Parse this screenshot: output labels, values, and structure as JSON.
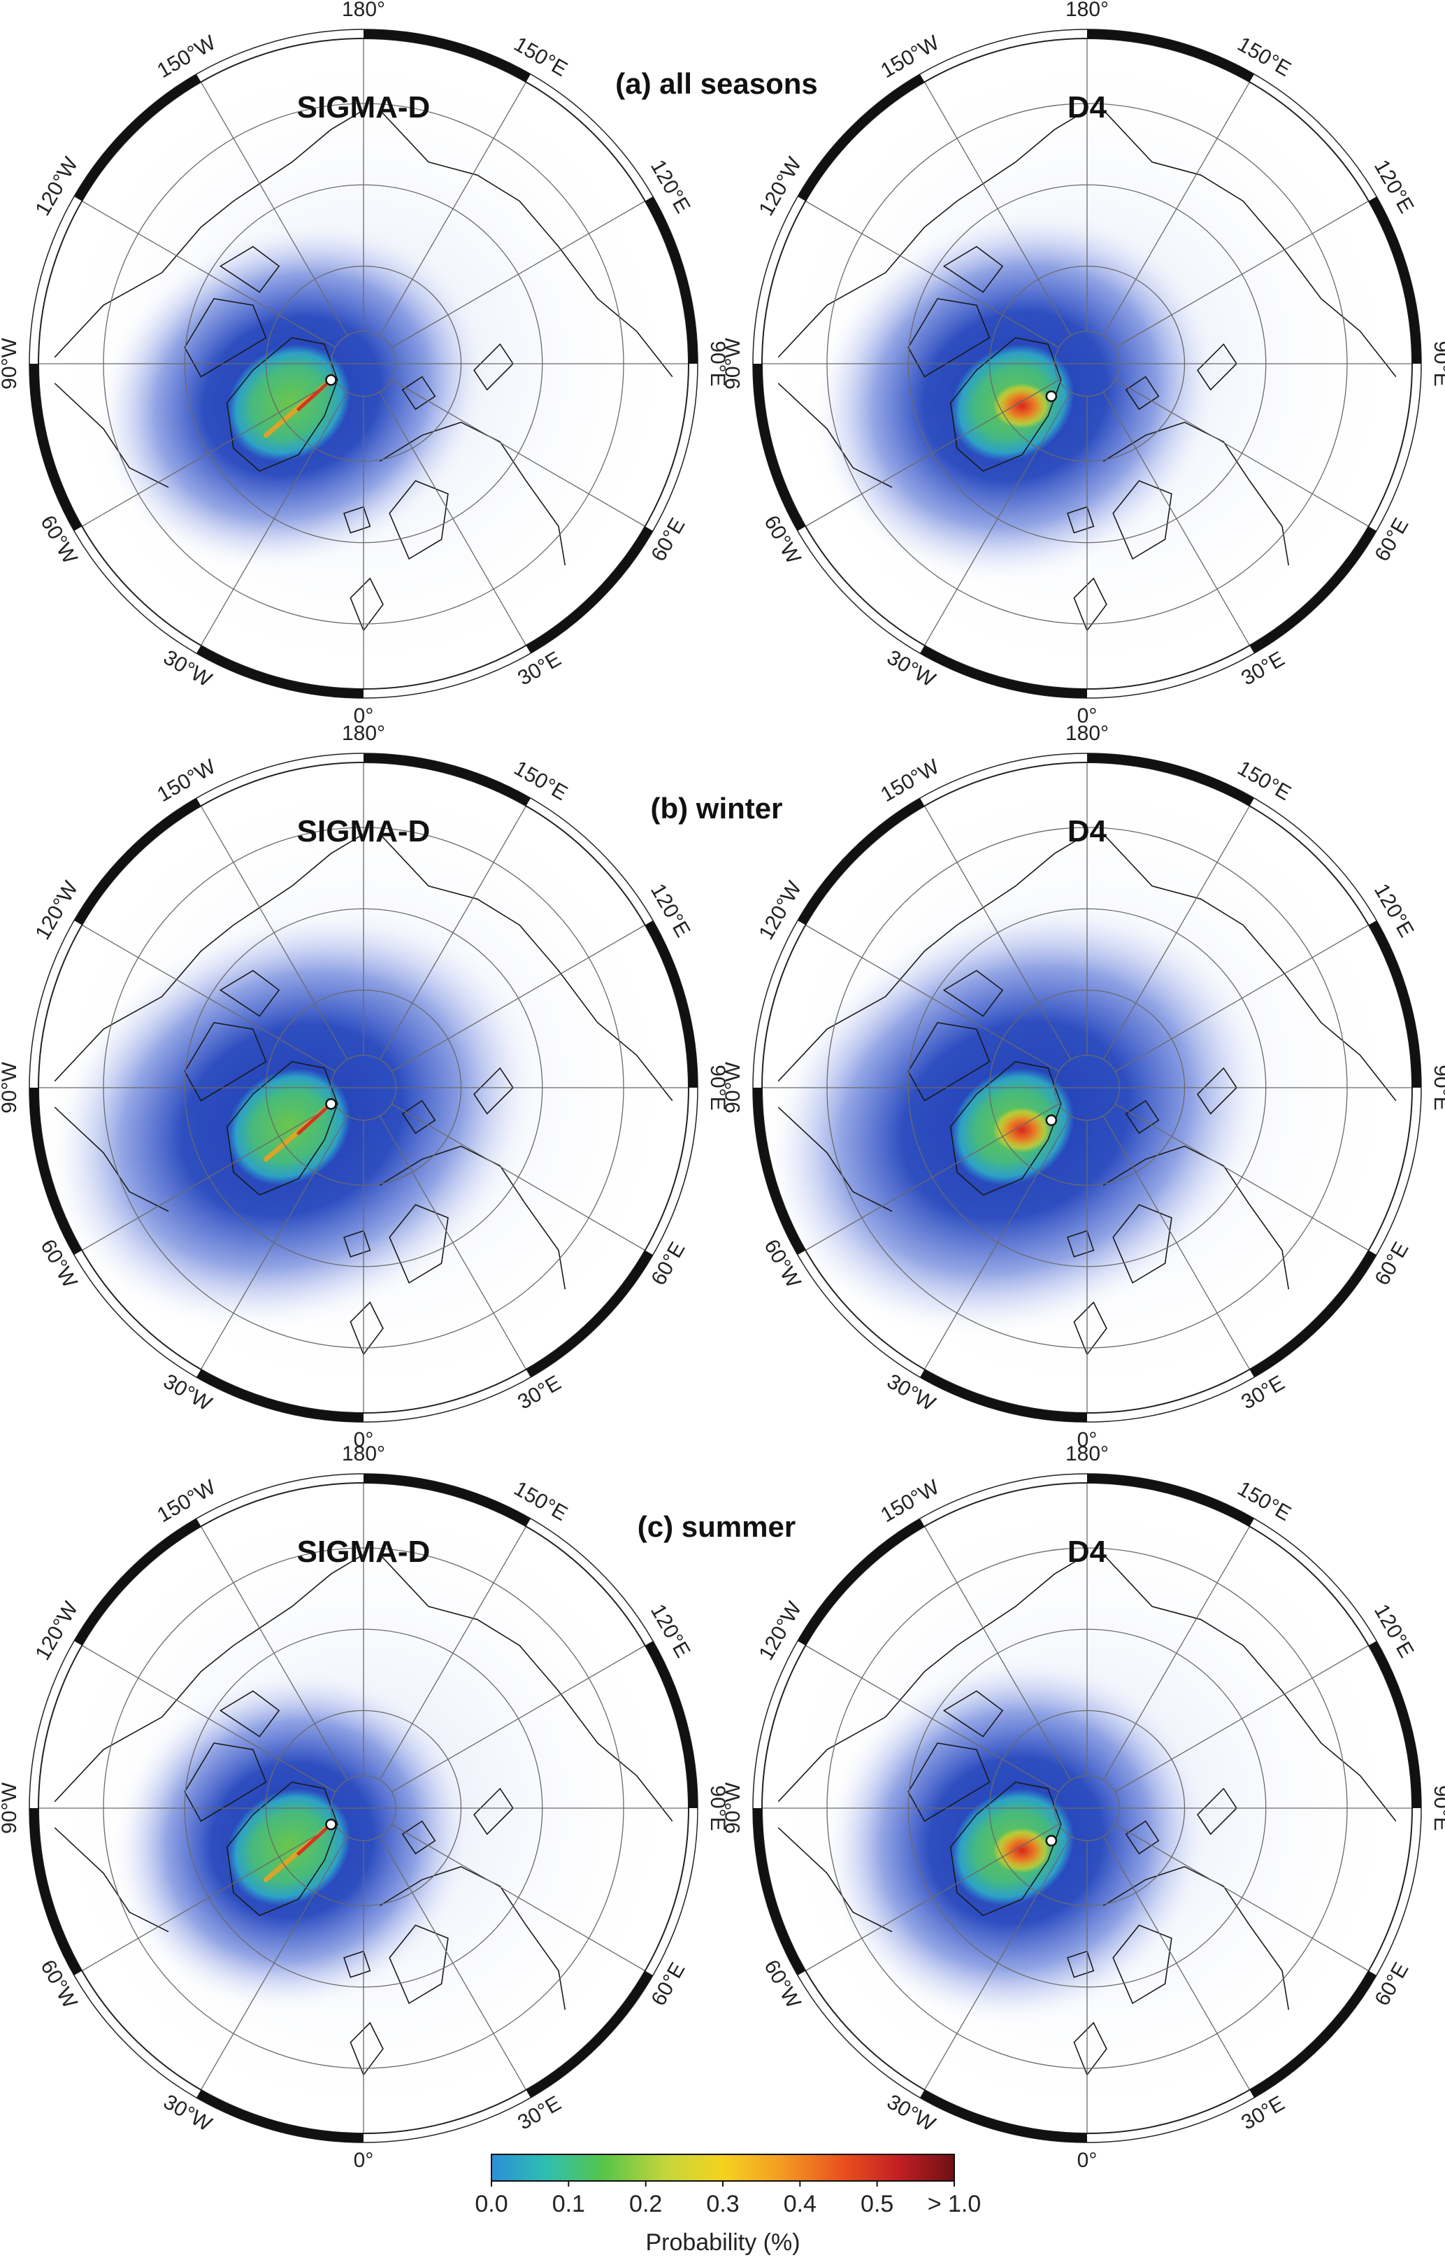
{
  "rows": [
    {
      "title": "(a) all seasons",
      "season": "all"
    },
    {
      "title": "(b) winter",
      "season": "winter"
    },
    {
      "title": "(c) summer",
      "season": "summer"
    }
  ],
  "columns": [
    {
      "title": "SIGMA-D",
      "station": "SIGMA-D"
    },
    {
      "title": "D4",
      "station": "D4"
    }
  ],
  "longitude_labels": [
    "180°",
    "150°E",
    "120°E",
    "90°E",
    "60°E",
    "30°E",
    "0°",
    "30°W",
    "60°W",
    "90°W",
    "120°W",
    "150°W"
  ],
  "colorbar": {
    "title": "Probability (%)",
    "ticks": [
      "0.0",
      "0.1",
      "0.2",
      "0.3",
      "0.4",
      "0.5",
      "> 1.0"
    ],
    "colors": [
      "#2b8fd8",
      "#2fbfb0",
      "#56c44a",
      "#c6d63a",
      "#f5d21f",
      "#f39a22",
      "#e9501e",
      "#c21f23",
      "#6e1016"
    ]
  },
  "colors": {
    "ring": "#111111",
    "grid": "#6a6a6a",
    "coast": "#1a1a1a",
    "plume": "#1f3fb0"
  }
}
